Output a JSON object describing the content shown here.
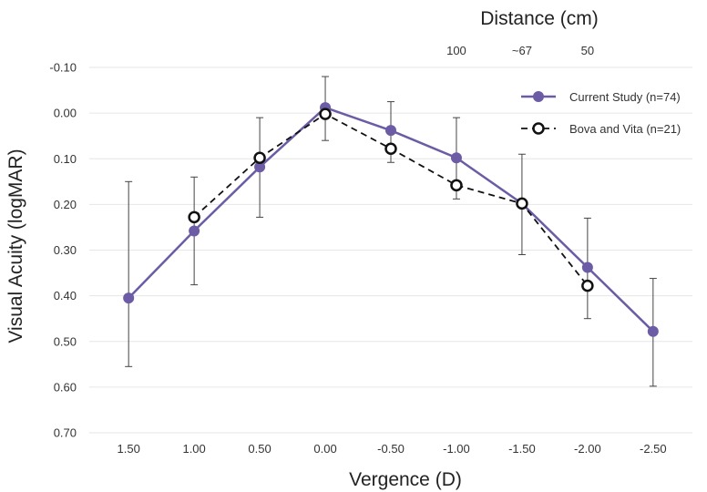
{
  "chart_data": {
    "type": "line",
    "xlabel": "Vergence (D)",
    "ylabel": "Visual Acuity (logMAR)",
    "x2label": "Distance (cm)",
    "x_ticks": [
      1.5,
      1.0,
      0.5,
      0.0,
      -0.5,
      -1.0,
      -1.5,
      -2.0,
      -2.5
    ],
    "x_tick_labels": [
      "1.50",
      "1.00",
      "0.50",
      "0.00",
      "-0.50",
      "-1.00",
      "-1.50",
      "-2.00",
      "-2.50"
    ],
    "xlim": [
      1.8,
      -2.8
    ],
    "top_axis_ticks": [
      {
        "x": -1.0,
        "label": "100"
      },
      {
        "x": -1.5,
        "label": "~67"
      },
      {
        "x": -2.0,
        "label": "50"
      }
    ],
    "y_ticks": [
      -0.1,
      0.0,
      0.1,
      0.2,
      0.3,
      0.4,
      0.5,
      0.6,
      0.7
    ],
    "y_tick_labels": [
      "-0.10",
      "0.00",
      "0.10",
      "0.20",
      "0.30",
      "0.40",
      "0.50",
      "0.60",
      "0.70"
    ],
    "ylim": [
      -0.1,
      0.7
    ],
    "y_inverted": true,
    "grid": "horizontal",
    "legend_position": "top-right",
    "series": [
      {
        "name": "Current Study (n=74)",
        "color": "#6b5ca5",
        "marker": "filled-circle",
        "line": "solid",
        "x": [
          1.5,
          1.0,
          0.5,
          0.0,
          -0.5,
          -1.0,
          -1.5,
          -2.0,
          -2.5
        ],
        "y": [
          0.405,
          0.258,
          0.118,
          -0.012,
          0.038,
          0.098,
          0.198,
          0.338,
          0.478
        ],
        "err_low": [
          0.255,
          0.118,
          0.108,
          0.068,
          0.063,
          0.088,
          0.108,
          0.108,
          0.116
        ],
        "err_high": [
          0.15,
          0.118,
          0.11,
          0.072,
          0.07,
          0.09,
          0.112,
          0.112,
          0.12
        ]
      },
      {
        "name": "Bova and Vita (n=21)",
        "color": "#111111",
        "marker": "open-circle",
        "line": "dashed",
        "x": [
          1.0,
          0.5,
          0.0,
          -0.5,
          -1.0,
          -1.5,
          -2.0
        ],
        "y": [
          0.228,
          0.098,
          0.002,
          0.078,
          0.158,
          0.198,
          0.378
        ],
        "err_low": [
          0.0,
          0.0,
          0.0,
          0.0,
          0.0,
          0.0,
          0.0
        ],
        "err_high": [
          0.0,
          0.0,
          0.0,
          0.0,
          0.0,
          0.0,
          0.0
        ]
      }
    ]
  }
}
